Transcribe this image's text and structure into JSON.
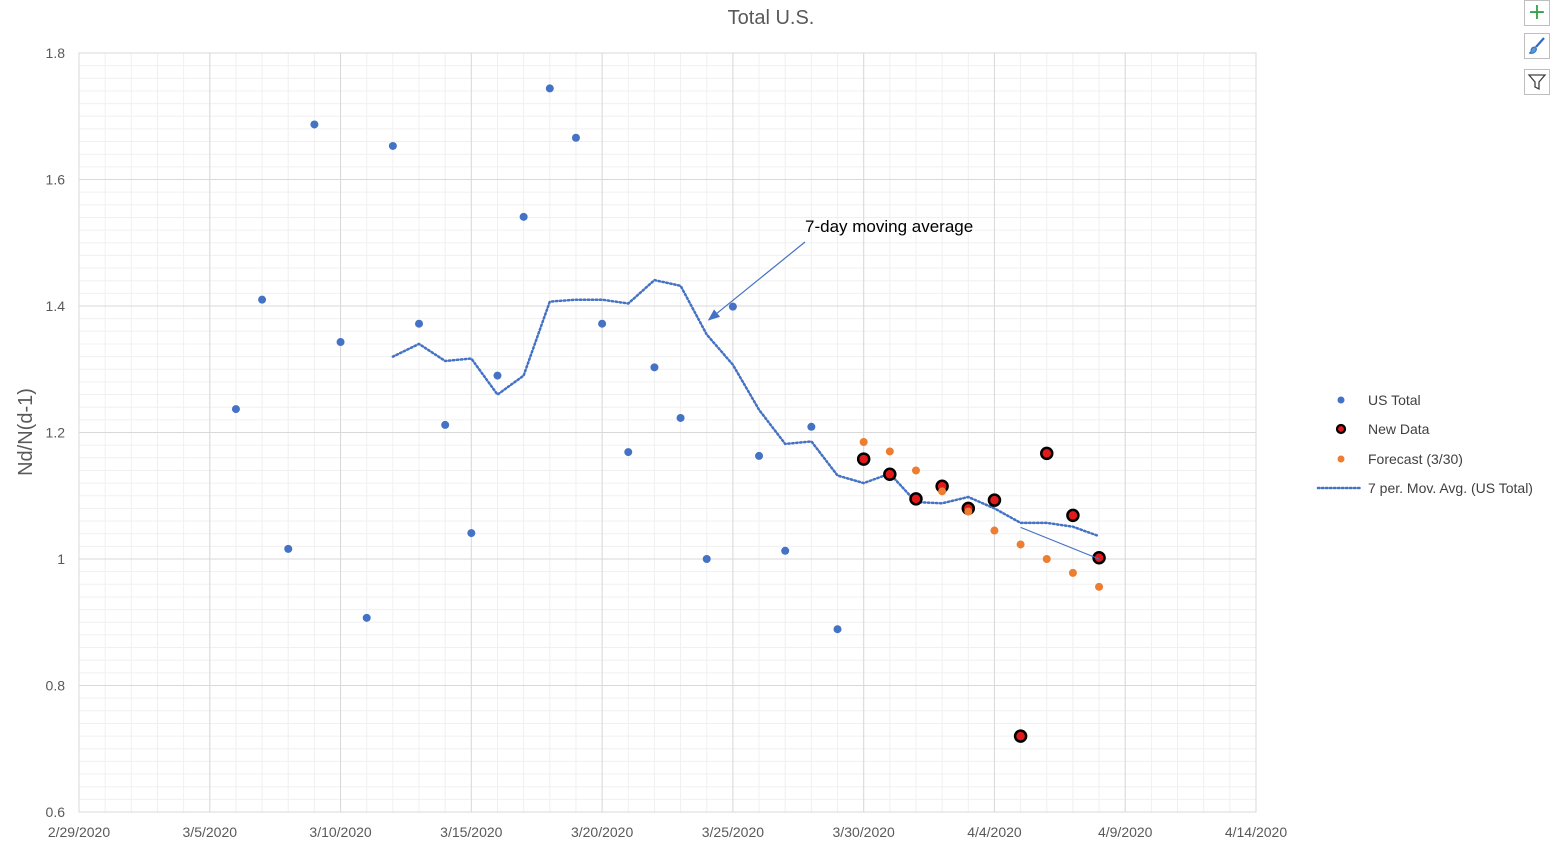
{
  "chart_data": {
    "type": "scatter",
    "title": "Total U.S.",
    "xlabel": "",
    "ylabel": "Nd/N(d-1)",
    "x_domain": [
      "2020-02-29",
      "2020-04-14"
    ],
    "x_ticks": [
      "2/29/2020",
      "3/5/2020",
      "3/10/2020",
      "3/15/2020",
      "3/20/2020",
      "3/25/2020",
      "3/30/2020",
      "4/4/2020",
      "4/9/2020",
      "4/14/2020"
    ],
    "ylim": [
      0.6,
      1.8
    ],
    "y_ticks": [
      "0.6",
      "0.8",
      "1",
      "1.2",
      "1.4",
      "1.6",
      "1.8"
    ],
    "grid": true,
    "legend_position": "right",
    "series": [
      {
        "name": "US Total",
        "kind": "points",
        "color": "#4472c4",
        "x": [
          "3/6/2020",
          "3/7/2020",
          "3/8/2020",
          "3/9/2020",
          "3/10/2020",
          "3/11/2020",
          "3/12/2020",
          "3/13/2020",
          "3/14/2020",
          "3/15/2020",
          "3/16/2020",
          "3/17/2020",
          "3/18/2020",
          "3/19/2020",
          "3/20/2020",
          "3/21/2020",
          "3/22/2020",
          "3/23/2020",
          "3/24/2020",
          "3/25/2020",
          "3/26/2020",
          "3/27/2020",
          "3/28/2020",
          "3/29/2020"
        ],
        "values": [
          1.237,
          1.41,
          1.016,
          1.687,
          1.343,
          0.907,
          1.653,
          1.372,
          1.212,
          1.041,
          1.29,
          1.541,
          1.744,
          1.666,
          1.372,
          1.169,
          1.303,
          1.223,
          1.0,
          1.399,
          1.163,
          1.013,
          1.209,
          0.889
        ]
      },
      {
        "name": "New Data",
        "kind": "points",
        "color": "#e31a1c",
        "edge_color": "#000000",
        "x": [
          "3/30/2020",
          "3/31/2020",
          "4/1/2020",
          "4/2/2020",
          "4/3/2020",
          "4/4/2020",
          "4/5/2020",
          "4/6/2020",
          "4/7/2020",
          "4/8/2020"
        ],
        "values": [
          1.158,
          1.134,
          1.095,
          1.115,
          1.08,
          1.093,
          0.72,
          1.167,
          1.069,
          1.002
        ]
      },
      {
        "name": "Forecast (3/30)",
        "kind": "points",
        "color": "#ed7d31",
        "x": [
          "3/30/2020",
          "3/31/2020",
          "4/1/2020",
          "4/2/2020",
          "4/3/2020",
          "4/4/2020",
          "4/5/2020",
          "4/6/2020",
          "4/7/2020",
          "4/8/2020"
        ],
        "values": [
          1.185,
          1.17,
          1.14,
          1.107,
          1.075,
          1.045,
          1.023,
          1.0,
          0.978,
          0.956
        ]
      },
      {
        "name": "7 per. Mov. Avg. (US Total)",
        "kind": "dotted-line",
        "color": "#4472c4",
        "x": [
          "3/12/2020",
          "3/13/2020",
          "3/14/2020",
          "3/15/2020",
          "3/16/2020",
          "3/17/2020",
          "3/18/2020",
          "3/19/2020",
          "3/20/2020",
          "3/21/2020",
          "3/22/2020",
          "3/23/2020",
          "3/24/2020",
          "3/25/2020",
          "3/26/2020",
          "3/27/2020",
          "3/28/2020",
          "3/29/2020",
          "3/30/2020",
          "3/31/2020",
          "4/1/2020",
          "4/2/2020",
          "4/3/2020",
          "4/4/2020",
          "4/5/2020",
          "4/6/2020",
          "4/7/2020",
          "4/8/2020"
        ],
        "values": [
          1.32,
          1.34,
          1.313,
          1.317,
          1.26,
          1.29,
          1.407,
          1.41,
          1.41,
          1.404,
          1.441,
          1.432,
          1.355,
          1.307,
          1.236,
          1.182,
          1.186,
          1.132,
          1.12,
          1.135,
          1.09,
          1.088,
          1.098,
          1.08,
          1.057,
          1.057,
          1.051,
          1.036
        ]
      }
    ],
    "annotations": [
      {
        "text": "7-day moving average",
        "arrow_to": [
          "3/24/2020",
          1.378
        ]
      }
    ],
    "overlay_line": {
      "from": [
        "4/5/2020",
        1.05
      ],
      "to": [
        "4/8/2020",
        1.0
      ]
    }
  },
  "ui": {
    "chart_elements_button": "+",
    "chart_styles_button": "brush",
    "chart_filters_button": "filter"
  }
}
